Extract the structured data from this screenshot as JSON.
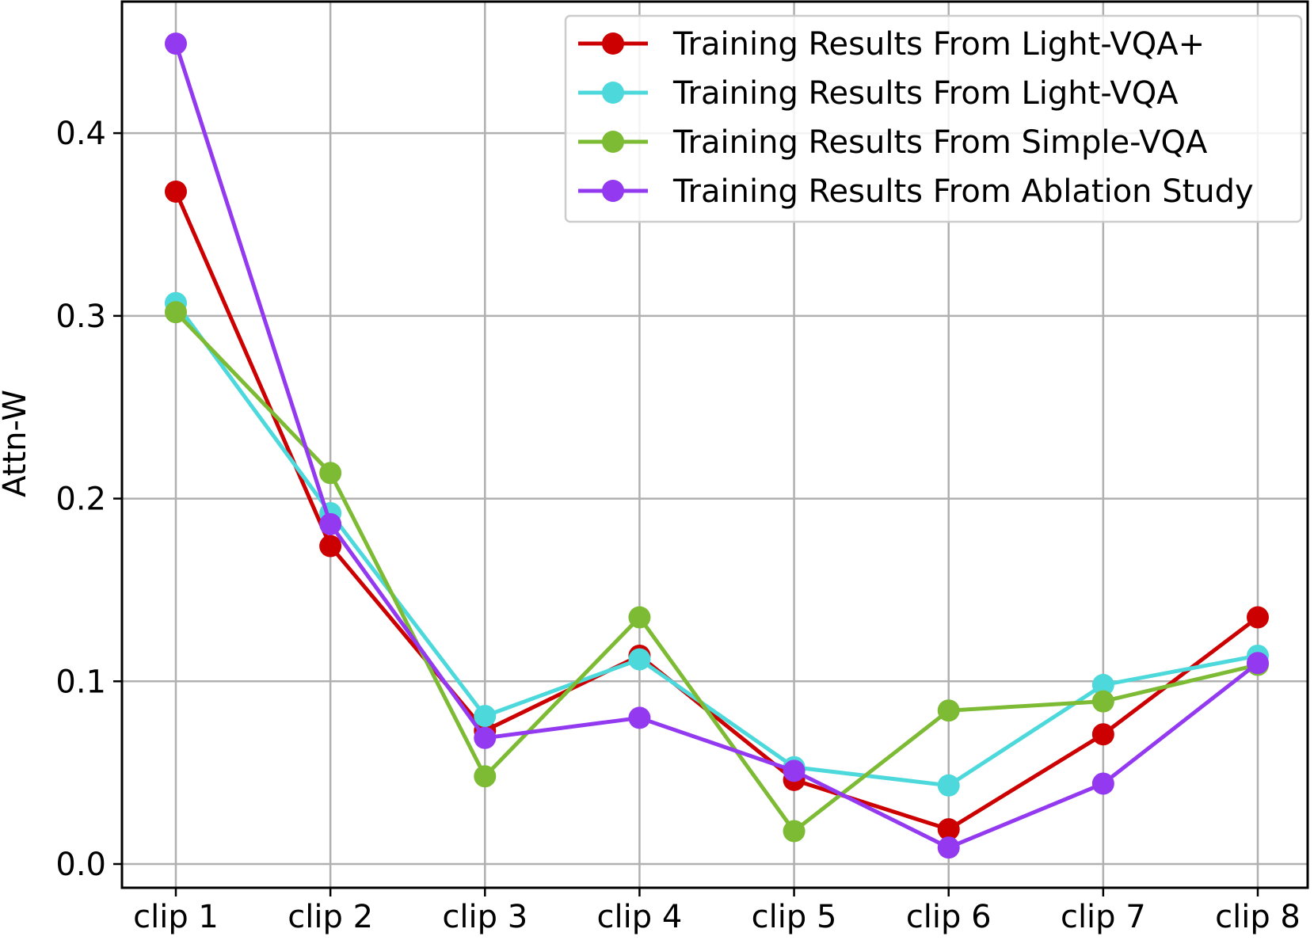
{
  "chart_data": {
    "type": "line",
    "title": "",
    "xlabel": "",
    "ylabel": "Attn-W",
    "categories": [
      "clip 1",
      "clip 2",
      "clip 3",
      "clip 4",
      "clip 5",
      "clip 6",
      "clip 7",
      "clip 8"
    ],
    "ylim": [
      -0.013,
      0.472
    ],
    "yticks": [
      0.0,
      0.1,
      0.2,
      0.3,
      0.4
    ],
    "ytick_labels": [
      "0.0",
      "0.1",
      "0.2",
      "0.3",
      "0.4"
    ],
    "grid": true,
    "legend_position": "top-right",
    "series": [
      {
        "name": "Training Results From Light-VQA+",
        "color": "#cc0000",
        "values": [
          0.368,
          0.174,
          0.073,
          0.114,
          0.046,
          0.019,
          0.071,
          0.135
        ]
      },
      {
        "name": "Training Results From Light-VQA",
        "color": "#4dd9dc",
        "values": [
          0.307,
          0.192,
          0.081,
          0.112,
          0.053,
          0.043,
          0.098,
          0.114
        ]
      },
      {
        "name": "Training Results From Simple-VQA",
        "color": "#7dbb34",
        "values": [
          0.302,
          0.214,
          0.048,
          0.135,
          0.018,
          0.084,
          0.089,
          0.109
        ]
      },
      {
        "name": "Training Results From Ablation Study",
        "color": "#9339f0",
        "values": [
          0.449,
          0.186,
          0.069,
          0.08,
          0.051,
          0.009,
          0.044,
          0.11
        ]
      }
    ]
  }
}
